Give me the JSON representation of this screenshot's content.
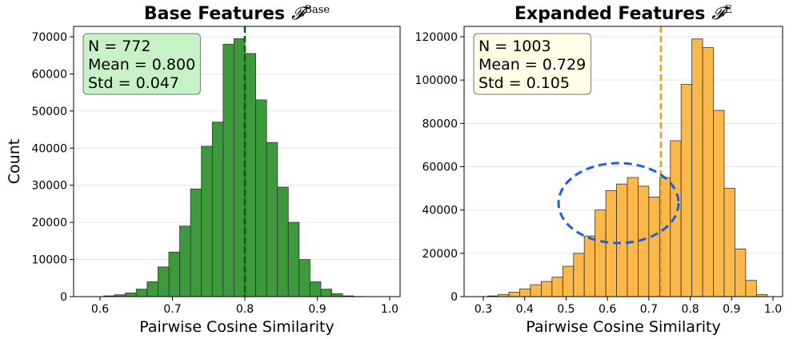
{
  "chart_data": [
    {
      "type": "histogram",
      "title": "Base Features",
      "title_symbol": "𝓕",
      "title_superscript": "Base",
      "xlabel": "Pairwise Cosine Similarity",
      "ylabel": "Count",
      "bins": [
        0.605,
        0.62,
        0.635,
        0.65,
        0.665,
        0.68,
        0.695,
        0.71,
        0.725,
        0.74,
        0.755,
        0.77,
        0.785,
        0.8,
        0.815,
        0.83,
        0.845,
        0.86,
        0.875,
        0.89,
        0.905,
        0.92,
        0.935,
        0.95,
        0.965
      ],
      "values": [
        200,
        500,
        1000,
        2000,
        4000,
        8000,
        12000,
        19000,
        29000,
        40500,
        47000,
        68000,
        69500,
        65500,
        53000,
        41500,
        29500,
        20000,
        10000,
        4000,
        2000,
        800,
        200,
        50
      ],
      "color": "#3c9a3c",
      "mean_line": 0.8,
      "mean_color": "#006400",
      "stats": [
        "N = 772",
        "Mean = 0.800",
        "Std = 0.047"
      ],
      "stats_color": "#c6f2c6",
      "xlim": [
        0.5635,
        1.0144
      ],
      "xticks": [
        0.6,
        0.7,
        0.8,
        0.9,
        {
          "value": 1,
          "label": "1.0"
        }
      ],
      "ylim": [
        0,
        72800
      ],
      "yticks": [
        0,
        10000,
        20000,
        30000,
        40000,
        50000,
        60000,
        70000
      ],
      "grid": true
    },
    {
      "type": "histogram",
      "title": "Expanded Features",
      "title_symbol": "𝓕",
      "title_superscript": "E",
      "xlabel": "Pairwise Cosine Similarity",
      "bins": [
        0.31,
        0.336,
        0.362,
        0.388,
        0.414,
        0.44,
        0.466,
        0.492,
        0.518,
        0.544,
        0.57,
        0.596,
        0.622,
        0.648,
        0.674,
        0.7,
        0.726,
        0.752,
        0.778,
        0.804,
        0.83,
        0.856,
        0.882,
        0.908,
        0.934,
        0.96,
        0.986
      ],
      "values": [
        300,
        1000,
        2000,
        3500,
        5500,
        7000,
        9000,
        14000,
        20000,
        28000,
        40000,
        49000,
        52000,
        55000,
        51000,
        46000,
        55000,
        72000,
        98000,
        119000,
        115000,
        86000,
        50000,
        22000,
        7500,
        1000
      ],
      "color": "#fdb84a",
      "mean_line": 0.729,
      "mean_color": "#f39a1e",
      "stats": [
        "N = 1003",
        "Mean = 0.729",
        "Std = 0.105"
      ],
      "stats_color": "#fefde6",
      "xlim": [
        0.2536,
        1.0232
      ],
      "xticks": [
        0.3,
        0.4,
        0.5,
        0.6,
        0.7,
        0.8,
        0.9,
        {
          "value": 1,
          "label": "1.0"
        }
      ],
      "ylim": [
        0,
        124800
      ],
      "yticks": [
        0,
        20000,
        40000,
        60000,
        80000,
        100000,
        120000
      ],
      "grid": true
    }
  ]
}
